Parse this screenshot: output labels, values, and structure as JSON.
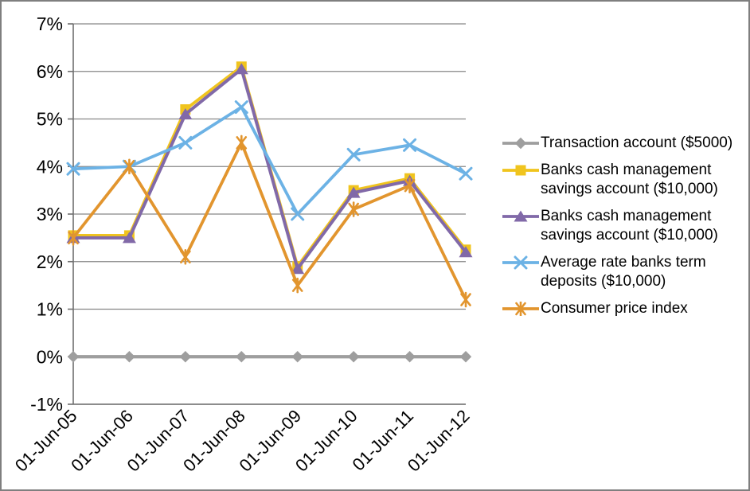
{
  "chart_data": {
    "type": "line",
    "categories": [
      "01-Jun-05",
      "01-Jun-06",
      "01-Jun-07",
      "01-Jun-08",
      "01-Jun-09",
      "01-Jun-10",
      "01-Jun-11",
      "01-Jun-12"
    ],
    "y_ticks": [
      "7%",
      "6%",
      "5%",
      "4%",
      "3%",
      "2%",
      "1%",
      "0%",
      "-1%"
    ],
    "y_tick_values": [
      7,
      6,
      5,
      4,
      3,
      2,
      1,
      0,
      -1
    ],
    "ylim": [
      -1,
      7
    ],
    "grid": "horizontal",
    "legend_position": "right",
    "series": [
      {
        "name": "Transaction account ($5000)",
        "marker": "diamond",
        "color": "#9e9e9e",
        "line_width": 4.2,
        "values": [
          0,
          0,
          0,
          0,
          0,
          0,
          0,
          0
        ]
      },
      {
        "name": "Banks cash management savings account ($10,000)",
        "marker": "square",
        "color": "#f0c41e",
        "line_width": 3.8,
        "values": [
          2.55,
          2.55,
          5.2,
          6.1,
          1.9,
          3.5,
          3.75,
          2.25
        ]
      },
      {
        "name": "Banks cash management savings account ($10,000)",
        "marker": "triangle",
        "color": "#8169a8",
        "line_width": 4.0,
        "values": [
          2.5,
          2.5,
          5.1,
          6.05,
          1.85,
          3.45,
          3.7,
          2.2
        ]
      },
      {
        "name": "Average rate banks term deposits ($10,000)",
        "marker": "x",
        "color": "#6cb2e5",
        "line_width": 3.8,
        "values": [
          3.95,
          4.0,
          4.5,
          5.25,
          3.0,
          4.25,
          4.45,
          3.85
        ]
      },
      {
        "name": "Consumer price index",
        "marker": "star",
        "color": "#e2952e",
        "line_width": 3.8,
        "values": [
          2.5,
          4.0,
          2.1,
          4.5,
          1.5,
          3.1,
          3.6,
          1.2
        ]
      }
    ]
  },
  "style": {
    "axis_color": "#707070",
    "gridline_color": "#868686",
    "border_color": "#7f7f7f",
    "text_color": "#000000",
    "background": "#ffffff"
  }
}
